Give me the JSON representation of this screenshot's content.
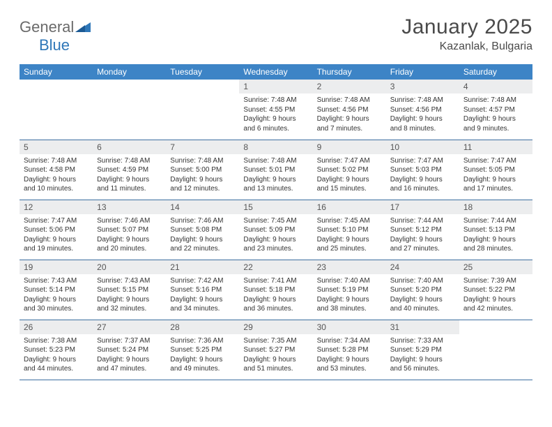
{
  "brand": {
    "name_part1": "General",
    "name_part2": "Blue"
  },
  "title": "January 2025",
  "location": "Kazanlak, Bulgaria",
  "colors": {
    "header_bg": "#3d84c6",
    "header_text": "#ffffff",
    "daynum_bg": "#ecedee",
    "border": "#3d6fa0",
    "logo_gray": "#6a6a6a",
    "logo_blue": "#2f77b8"
  },
  "weekdays": [
    "Sunday",
    "Monday",
    "Tuesday",
    "Wednesday",
    "Thursday",
    "Friday",
    "Saturday"
  ],
  "weeks": [
    [
      {
        "blank": true
      },
      {
        "blank": true
      },
      {
        "blank": true
      },
      {
        "day": "1",
        "sunrise": "7:48 AM",
        "sunset": "4:55 PM",
        "daylight": "9 hours and 6 minutes."
      },
      {
        "day": "2",
        "sunrise": "7:48 AM",
        "sunset": "4:56 PM",
        "daylight": "9 hours and 7 minutes."
      },
      {
        "day": "3",
        "sunrise": "7:48 AM",
        "sunset": "4:56 PM",
        "daylight": "9 hours and 8 minutes."
      },
      {
        "day": "4",
        "sunrise": "7:48 AM",
        "sunset": "4:57 PM",
        "daylight": "9 hours and 9 minutes."
      }
    ],
    [
      {
        "day": "5",
        "sunrise": "7:48 AM",
        "sunset": "4:58 PM",
        "daylight": "9 hours and 10 minutes."
      },
      {
        "day": "6",
        "sunrise": "7:48 AM",
        "sunset": "4:59 PM",
        "daylight": "9 hours and 11 minutes."
      },
      {
        "day": "7",
        "sunrise": "7:48 AM",
        "sunset": "5:00 PM",
        "daylight": "9 hours and 12 minutes."
      },
      {
        "day": "8",
        "sunrise": "7:48 AM",
        "sunset": "5:01 PM",
        "daylight": "9 hours and 13 minutes."
      },
      {
        "day": "9",
        "sunrise": "7:47 AM",
        "sunset": "5:02 PM",
        "daylight": "9 hours and 15 minutes."
      },
      {
        "day": "10",
        "sunrise": "7:47 AM",
        "sunset": "5:03 PM",
        "daylight": "9 hours and 16 minutes."
      },
      {
        "day": "11",
        "sunrise": "7:47 AM",
        "sunset": "5:05 PM",
        "daylight": "9 hours and 17 minutes."
      }
    ],
    [
      {
        "day": "12",
        "sunrise": "7:47 AM",
        "sunset": "5:06 PM",
        "daylight": "9 hours and 19 minutes."
      },
      {
        "day": "13",
        "sunrise": "7:46 AM",
        "sunset": "5:07 PM",
        "daylight": "9 hours and 20 minutes."
      },
      {
        "day": "14",
        "sunrise": "7:46 AM",
        "sunset": "5:08 PM",
        "daylight": "9 hours and 22 minutes."
      },
      {
        "day": "15",
        "sunrise": "7:45 AM",
        "sunset": "5:09 PM",
        "daylight": "9 hours and 23 minutes."
      },
      {
        "day": "16",
        "sunrise": "7:45 AM",
        "sunset": "5:10 PM",
        "daylight": "9 hours and 25 minutes."
      },
      {
        "day": "17",
        "sunrise": "7:44 AM",
        "sunset": "5:12 PM",
        "daylight": "9 hours and 27 minutes."
      },
      {
        "day": "18",
        "sunrise": "7:44 AM",
        "sunset": "5:13 PM",
        "daylight": "9 hours and 28 minutes."
      }
    ],
    [
      {
        "day": "19",
        "sunrise": "7:43 AM",
        "sunset": "5:14 PM",
        "daylight": "9 hours and 30 minutes."
      },
      {
        "day": "20",
        "sunrise": "7:43 AM",
        "sunset": "5:15 PM",
        "daylight": "9 hours and 32 minutes."
      },
      {
        "day": "21",
        "sunrise": "7:42 AM",
        "sunset": "5:16 PM",
        "daylight": "9 hours and 34 minutes."
      },
      {
        "day": "22",
        "sunrise": "7:41 AM",
        "sunset": "5:18 PM",
        "daylight": "9 hours and 36 minutes."
      },
      {
        "day": "23",
        "sunrise": "7:40 AM",
        "sunset": "5:19 PM",
        "daylight": "9 hours and 38 minutes."
      },
      {
        "day": "24",
        "sunrise": "7:40 AM",
        "sunset": "5:20 PM",
        "daylight": "9 hours and 40 minutes."
      },
      {
        "day": "25",
        "sunrise": "7:39 AM",
        "sunset": "5:22 PM",
        "daylight": "9 hours and 42 minutes."
      }
    ],
    [
      {
        "day": "26",
        "sunrise": "7:38 AM",
        "sunset": "5:23 PM",
        "daylight": "9 hours and 44 minutes."
      },
      {
        "day": "27",
        "sunrise": "7:37 AM",
        "sunset": "5:24 PM",
        "daylight": "9 hours and 47 minutes."
      },
      {
        "day": "28",
        "sunrise": "7:36 AM",
        "sunset": "5:25 PM",
        "daylight": "9 hours and 49 minutes."
      },
      {
        "day": "29",
        "sunrise": "7:35 AM",
        "sunset": "5:27 PM",
        "daylight": "9 hours and 51 minutes."
      },
      {
        "day": "30",
        "sunrise": "7:34 AM",
        "sunset": "5:28 PM",
        "daylight": "9 hours and 53 minutes."
      },
      {
        "day": "31",
        "sunrise": "7:33 AM",
        "sunset": "5:29 PM",
        "daylight": "9 hours and 56 minutes."
      },
      {
        "blank": true
      }
    ]
  ]
}
